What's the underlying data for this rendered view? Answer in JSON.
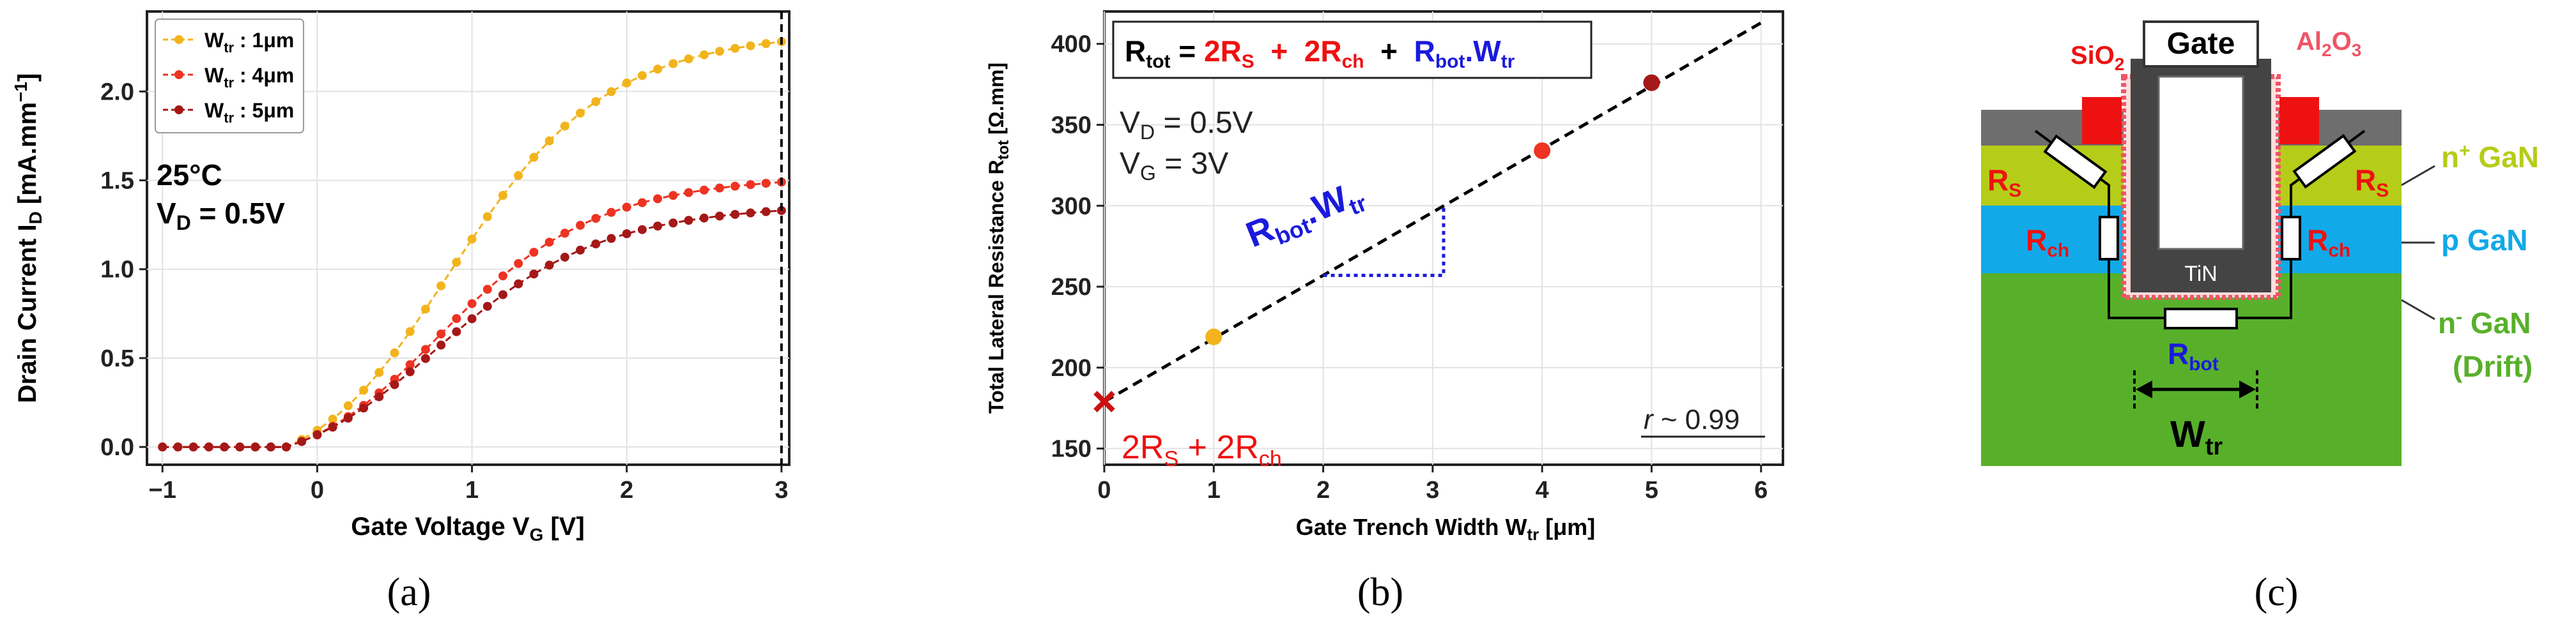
{
  "chart_data": [
    {
      "panel": "(a)",
      "type": "line",
      "xlabel_main": "Gate Voltage  V",
      "xlabel_sub": "G",
      "xlabel_unit": " [V]",
      "ylabel_main": "Drain Current  I",
      "ylabel_sub": "D",
      "ylabel_unit": " [mA.mm",
      "ylabel_exp": "−1",
      "ylabel_end": "]",
      "xlim": [
        -1.1,
        3.05
      ],
      "ylim": [
        -0.1,
        2.45
      ],
      "xticks": [
        -1,
        0,
        1,
        2,
        3
      ],
      "xtick_labels": [
        "−1",
        "0",
        "1",
        "2",
        "3"
      ],
      "yticks": [
        0.0,
        0.5,
        1.0,
        1.5,
        2.0
      ],
      "ytick_labels": [
        "0.0",
        "0.5",
        "1.0",
        "1.5",
        "2.0"
      ],
      "grid": true,
      "vline_x": 3,
      "annotation_temp": "25°C",
      "annotation_vd_main": "V",
      "annotation_vd_sub": "D",
      "annotation_vd_val": " = 0.5V",
      "legend_position": "top-left",
      "series": [
        {
          "legend_main": "W",
          "legend_sub": "tr",
          "legend_val": " : 1μm",
          "color": "#f2b41c",
          "vth": 0.7,
          "slope": 2.1,
          "isat": 2.33
        },
        {
          "legend_main": "W",
          "legend_sub": "tr",
          "legend_val": " : 4μm",
          "color": "#ee3322",
          "vth": 0.62,
          "slope": 2.1,
          "isat": 1.52
        },
        {
          "legend_main": "W",
          "legend_sub": "tr",
          "legend_val": " : 5μm",
          "color": "#a51818",
          "vth": 0.6,
          "slope": 2.0,
          "isat": 1.35
        }
      ],
      "x_start": -1,
      "x_end": 3,
      "x_step": 0.1
    },
    {
      "panel": "(b)",
      "type": "scatter",
      "xlabel_main": "Gate Trench Width  W",
      "xlabel_sub": "tr",
      "xlabel_unit": " [μm]",
      "ylabel_main": "Total Lateral Resistance  R",
      "ylabel_sub": "tot",
      "ylabel_unit": " [Ω.mm]",
      "xlim": [
        0,
        6.2
      ],
      "ylim": [
        140,
        420
      ],
      "xticks": [
        0,
        1,
        2,
        3,
        4,
        5,
        6
      ],
      "xtick_labels": [
        "0",
        "1",
        "2",
        "3",
        "4",
        "5",
        "6"
      ],
      "yticks": [
        150,
        200,
        250,
        300,
        350,
        400
      ],
      "ytick_labels": [
        "150",
        "200",
        "250",
        "300",
        "350",
        "400"
      ],
      "grid": true,
      "points": [
        {
          "x": 1,
          "y": 219,
          "color": "#f2b41c"
        },
        {
          "x": 4,
          "y": 334,
          "color": "#ee3322"
        },
        {
          "x": 5,
          "y": 376,
          "color": "#a51818"
        }
      ],
      "fit_intercept": 179,
      "fit_slope": 39,
      "fit_x_end": 6.0,
      "intercept_marker": {
        "x": 0,
        "y": 179,
        "color": "#cc1111"
      },
      "equation": {
        "lhs_main": "R",
        "lhs_sub": "tot",
        "eq": " = ",
        "t1_main": "2R",
        "t1_sub": "S",
        "plus1": "  +  ",
        "t2_main": "2R",
        "t2_sub": "ch",
        "plus2": "  +  ",
        "t3_main": "R",
        "t3_sub": "bot",
        "t3_dot": ".W",
        "t3_sub2": "tr"
      },
      "cond_vd_main": "V",
      "cond_vd_sub": "D",
      "cond_vd_val": " = 0.5V",
      "cond_vg_main": "V",
      "cond_vg_sub": "G",
      "cond_vg_val": " = 3V",
      "slope_label_main": "R",
      "slope_label_sub": "bot",
      "slope_label_dot": ".W",
      "slope_label_sub2": "tr",
      "intercept_label": {
        "a": "2R",
        "a_sub": "S",
        "plus": " + ",
        "b": "2R",
        "b_sub": "ch"
      },
      "r_value": {
        "r": "r",
        "rest": " ~ 0.99"
      },
      "triangle": {
        "x0": 2,
        "x1": 3.1,
        "y0": 257,
        "y1": 300
      }
    }
  ],
  "diagram": {
    "panel": "(c)",
    "gate_label": "Gate",
    "tin_label": "TiN",
    "sio2_main": "SiO",
    "sio2_sub": "2",
    "al2o3_a": "Al",
    "al2o3_sub1": "2",
    "al2o3_b": "O",
    "al2o3_sub2": "3",
    "rs_main": "R",
    "rs_sub": "S",
    "rch_main": "R",
    "rch_sub": "ch",
    "rbot_main": "R",
    "rbot_sub": "bot",
    "wtr_main": "W",
    "wtr_sub": "tr",
    "layer_nplus_a": "n",
    "layer_nplus_sup": "+",
    "layer_nplus_b": " GaN",
    "layer_p": "p GaN",
    "layer_nminus_a": "n",
    "layer_nminus_sup": "-",
    "layer_nminus_b": " GaN",
    "layer_drift": "(Drift)",
    "colors": {
      "nplus": "#b5cc18",
      "p": "#12a9e8",
      "nminus": "#58b02a",
      "oxide_top": "#6e6e6e",
      "gate": "#444444",
      "red": "#ee1111",
      "pink": "#ee5566"
    }
  },
  "panel_labels": {
    "a": "(a)",
    "b": "(b)",
    "c": "(c)"
  }
}
